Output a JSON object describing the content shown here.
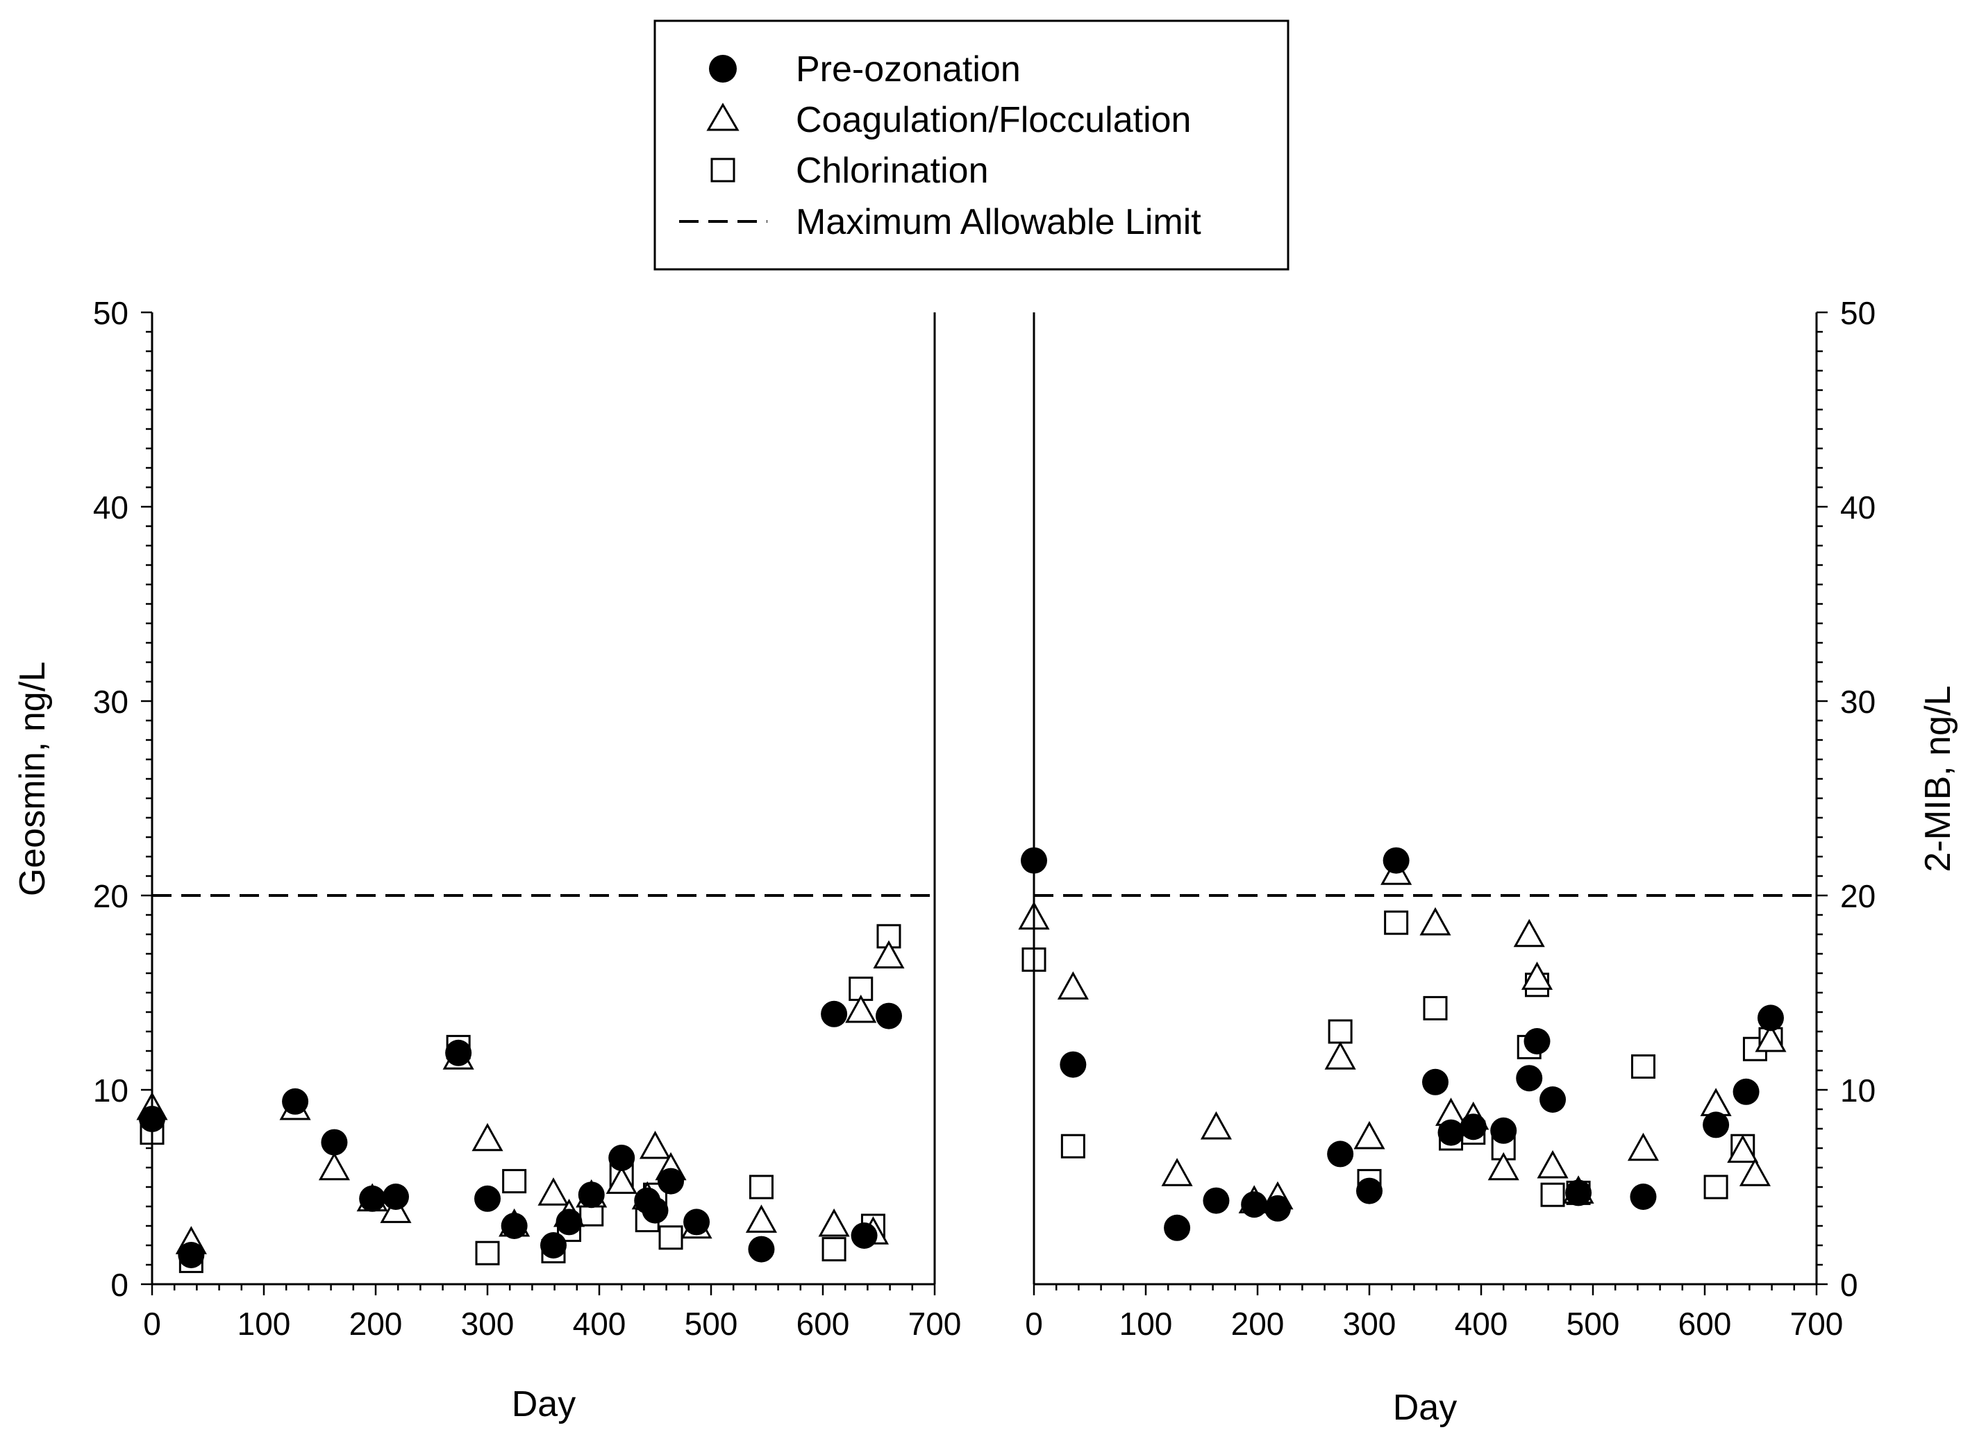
{
  "legend": {
    "items": [
      {
        "marker": "filled-circle",
        "label": "Pre-ozonation"
      },
      {
        "marker": "open-triangle",
        "label": "Coagulation/Flocculation"
      },
      {
        "marker": "open-square",
        "label": "Chlorination"
      },
      {
        "marker": "dashed-line",
        "label": "Maximum Allowable Limit"
      }
    ]
  },
  "chart_data": [
    {
      "type": "scatter",
      "title": "",
      "xlabel": "Day",
      "ylabel": "Geosmin, ng/L",
      "xlim": [
        0,
        700
      ],
      "ylim": [
        0,
        50
      ],
      "xticks": [
        0,
        100,
        200,
        300,
        400,
        500,
        600,
        700
      ],
      "yticks": [
        0,
        10,
        20,
        30,
        40,
        50
      ],
      "limit_line": 20,
      "series": [
        {
          "name": "Pre-ozonation",
          "marker": "filled-circle",
          "points": [
            [
              0,
              8.5
            ],
            [
              35,
              1.5
            ],
            [
              128,
              9.4
            ],
            [
              163,
              7.3
            ],
            [
              197,
              4.4
            ],
            [
              218,
              4.5
            ],
            [
              274,
              11.9
            ],
            [
              300,
              4.4
            ],
            [
              324,
              3.0
            ],
            [
              359,
              2.0
            ],
            [
              373,
              3.2
            ],
            [
              393,
              4.6
            ],
            [
              420,
              6.5
            ],
            [
              443,
              4.3
            ],
            [
              450,
              3.8
            ],
            [
              464,
              5.3
            ],
            [
              487,
              3.2
            ],
            [
              545,
              1.8
            ],
            [
              610,
              13.9
            ],
            [
              637,
              2.5
            ],
            [
              659,
              13.8
            ]
          ]
        },
        {
          "name": "Coagulation/Flocculation",
          "marker": "open-triangle",
          "points": [
            [
              0,
              9.0
            ],
            [
              35,
              2.1
            ],
            [
              128,
              9.0
            ],
            [
              163,
              5.9
            ],
            [
              197,
              4.3
            ],
            [
              218,
              3.7
            ],
            [
              274,
              11.6
            ],
            [
              300,
              7.4
            ],
            [
              324,
              3.0
            ],
            [
              359,
              4.6
            ],
            [
              373,
              3.5
            ],
            [
              393,
              4.5
            ],
            [
              420,
              5.2
            ],
            [
              443,
              4.4
            ],
            [
              450,
              7.0
            ],
            [
              464,
              5.9
            ],
            [
              487,
              2.9
            ],
            [
              545,
              3.2
            ],
            [
              610,
              3.0
            ],
            [
              634,
              14.0
            ],
            [
              645,
              2.6
            ],
            [
              659,
              16.8
            ]
          ]
        },
        {
          "name": "Chlorination",
          "marker": "open-square",
          "points": [
            [
              0,
              7.8
            ],
            [
              35,
              1.2
            ],
            [
              274,
              12.2
            ],
            [
              300,
              1.6
            ],
            [
              324,
              5.3
            ],
            [
              359,
              1.7
            ],
            [
              373,
              2.8
            ],
            [
              393,
              3.6
            ],
            [
              420,
              5.6
            ],
            [
              443,
              3.3
            ],
            [
              450,
              4.6
            ],
            [
              464,
              2.4
            ],
            [
              545,
              5.0
            ],
            [
              610,
              1.8
            ],
            [
              634,
              15.2
            ],
            [
              645,
              3.0
            ],
            [
              659,
              17.9
            ]
          ]
        }
      ]
    },
    {
      "type": "scatter",
      "title": "",
      "xlabel": "Day",
      "ylabel": "2-MIB, ng/L",
      "xlim": [
        0,
        700
      ],
      "ylim": [
        0,
        50
      ],
      "xticks": [
        0,
        100,
        200,
        300,
        400,
        500,
        600,
        700
      ],
      "yticks": [
        0,
        10,
        20,
        30,
        40,
        50
      ],
      "limit_line": 20,
      "series": [
        {
          "name": "Pre-ozonation",
          "marker": "filled-circle",
          "points": [
            [
              0,
              21.8
            ],
            [
              35,
              11.3
            ],
            [
              128,
              2.9
            ],
            [
              163,
              4.3
            ],
            [
              197,
              4.1
            ],
            [
              218,
              3.9
            ],
            [
              274,
              6.7
            ],
            [
              300,
              4.8
            ],
            [
              324,
              21.8
            ],
            [
              359,
              10.4
            ],
            [
              373,
              7.8
            ],
            [
              393,
              8.1
            ],
            [
              420,
              7.9
            ],
            [
              443,
              10.6
            ],
            [
              450,
              12.5
            ],
            [
              464,
              9.5
            ],
            [
              487,
              4.7
            ],
            [
              545,
              4.5
            ],
            [
              610,
              8.2
            ],
            [
              637,
              9.9
            ],
            [
              659,
              13.7
            ]
          ]
        },
        {
          "name": "Coagulation/Flocculation",
          "marker": "open-triangle",
          "points": [
            [
              0,
              18.8
            ],
            [
              35,
              15.2
            ],
            [
              128,
              5.6
            ],
            [
              163,
              8.0
            ],
            [
              197,
              4.2
            ],
            [
              218,
              4.4
            ],
            [
              274,
              11.6
            ],
            [
              300,
              7.5
            ],
            [
              324,
              21.1
            ],
            [
              359,
              18.5
            ],
            [
              373,
              8.7
            ],
            [
              393,
              8.5
            ],
            [
              420,
              5.9
            ],
            [
              443,
              17.9
            ],
            [
              450,
              15.7
            ],
            [
              464,
              6.0
            ],
            [
              487,
              4.7
            ],
            [
              545,
              6.9
            ],
            [
              610,
              9.2
            ],
            [
              634,
              6.8
            ],
            [
              645,
              5.6
            ],
            [
              659,
              12.5
            ]
          ]
        },
        {
          "name": "Chlorination",
          "marker": "open-square",
          "points": [
            [
              0,
              16.7
            ],
            [
              35,
              7.1
            ],
            [
              274,
              13.0
            ],
            [
              300,
              5.3
            ],
            [
              324,
              18.6
            ],
            [
              359,
              14.2
            ],
            [
              373,
              7.5
            ],
            [
              393,
              7.8
            ],
            [
              420,
              7.0
            ],
            [
              443,
              12.2
            ],
            [
              450,
              15.4
            ],
            [
              464,
              4.6
            ],
            [
              487,
              4.7
            ],
            [
              545,
              11.2
            ],
            [
              610,
              5.0
            ],
            [
              634,
              7.1
            ],
            [
              645,
              12.1
            ],
            [
              659,
              12.6
            ]
          ]
        }
      ]
    }
  ]
}
